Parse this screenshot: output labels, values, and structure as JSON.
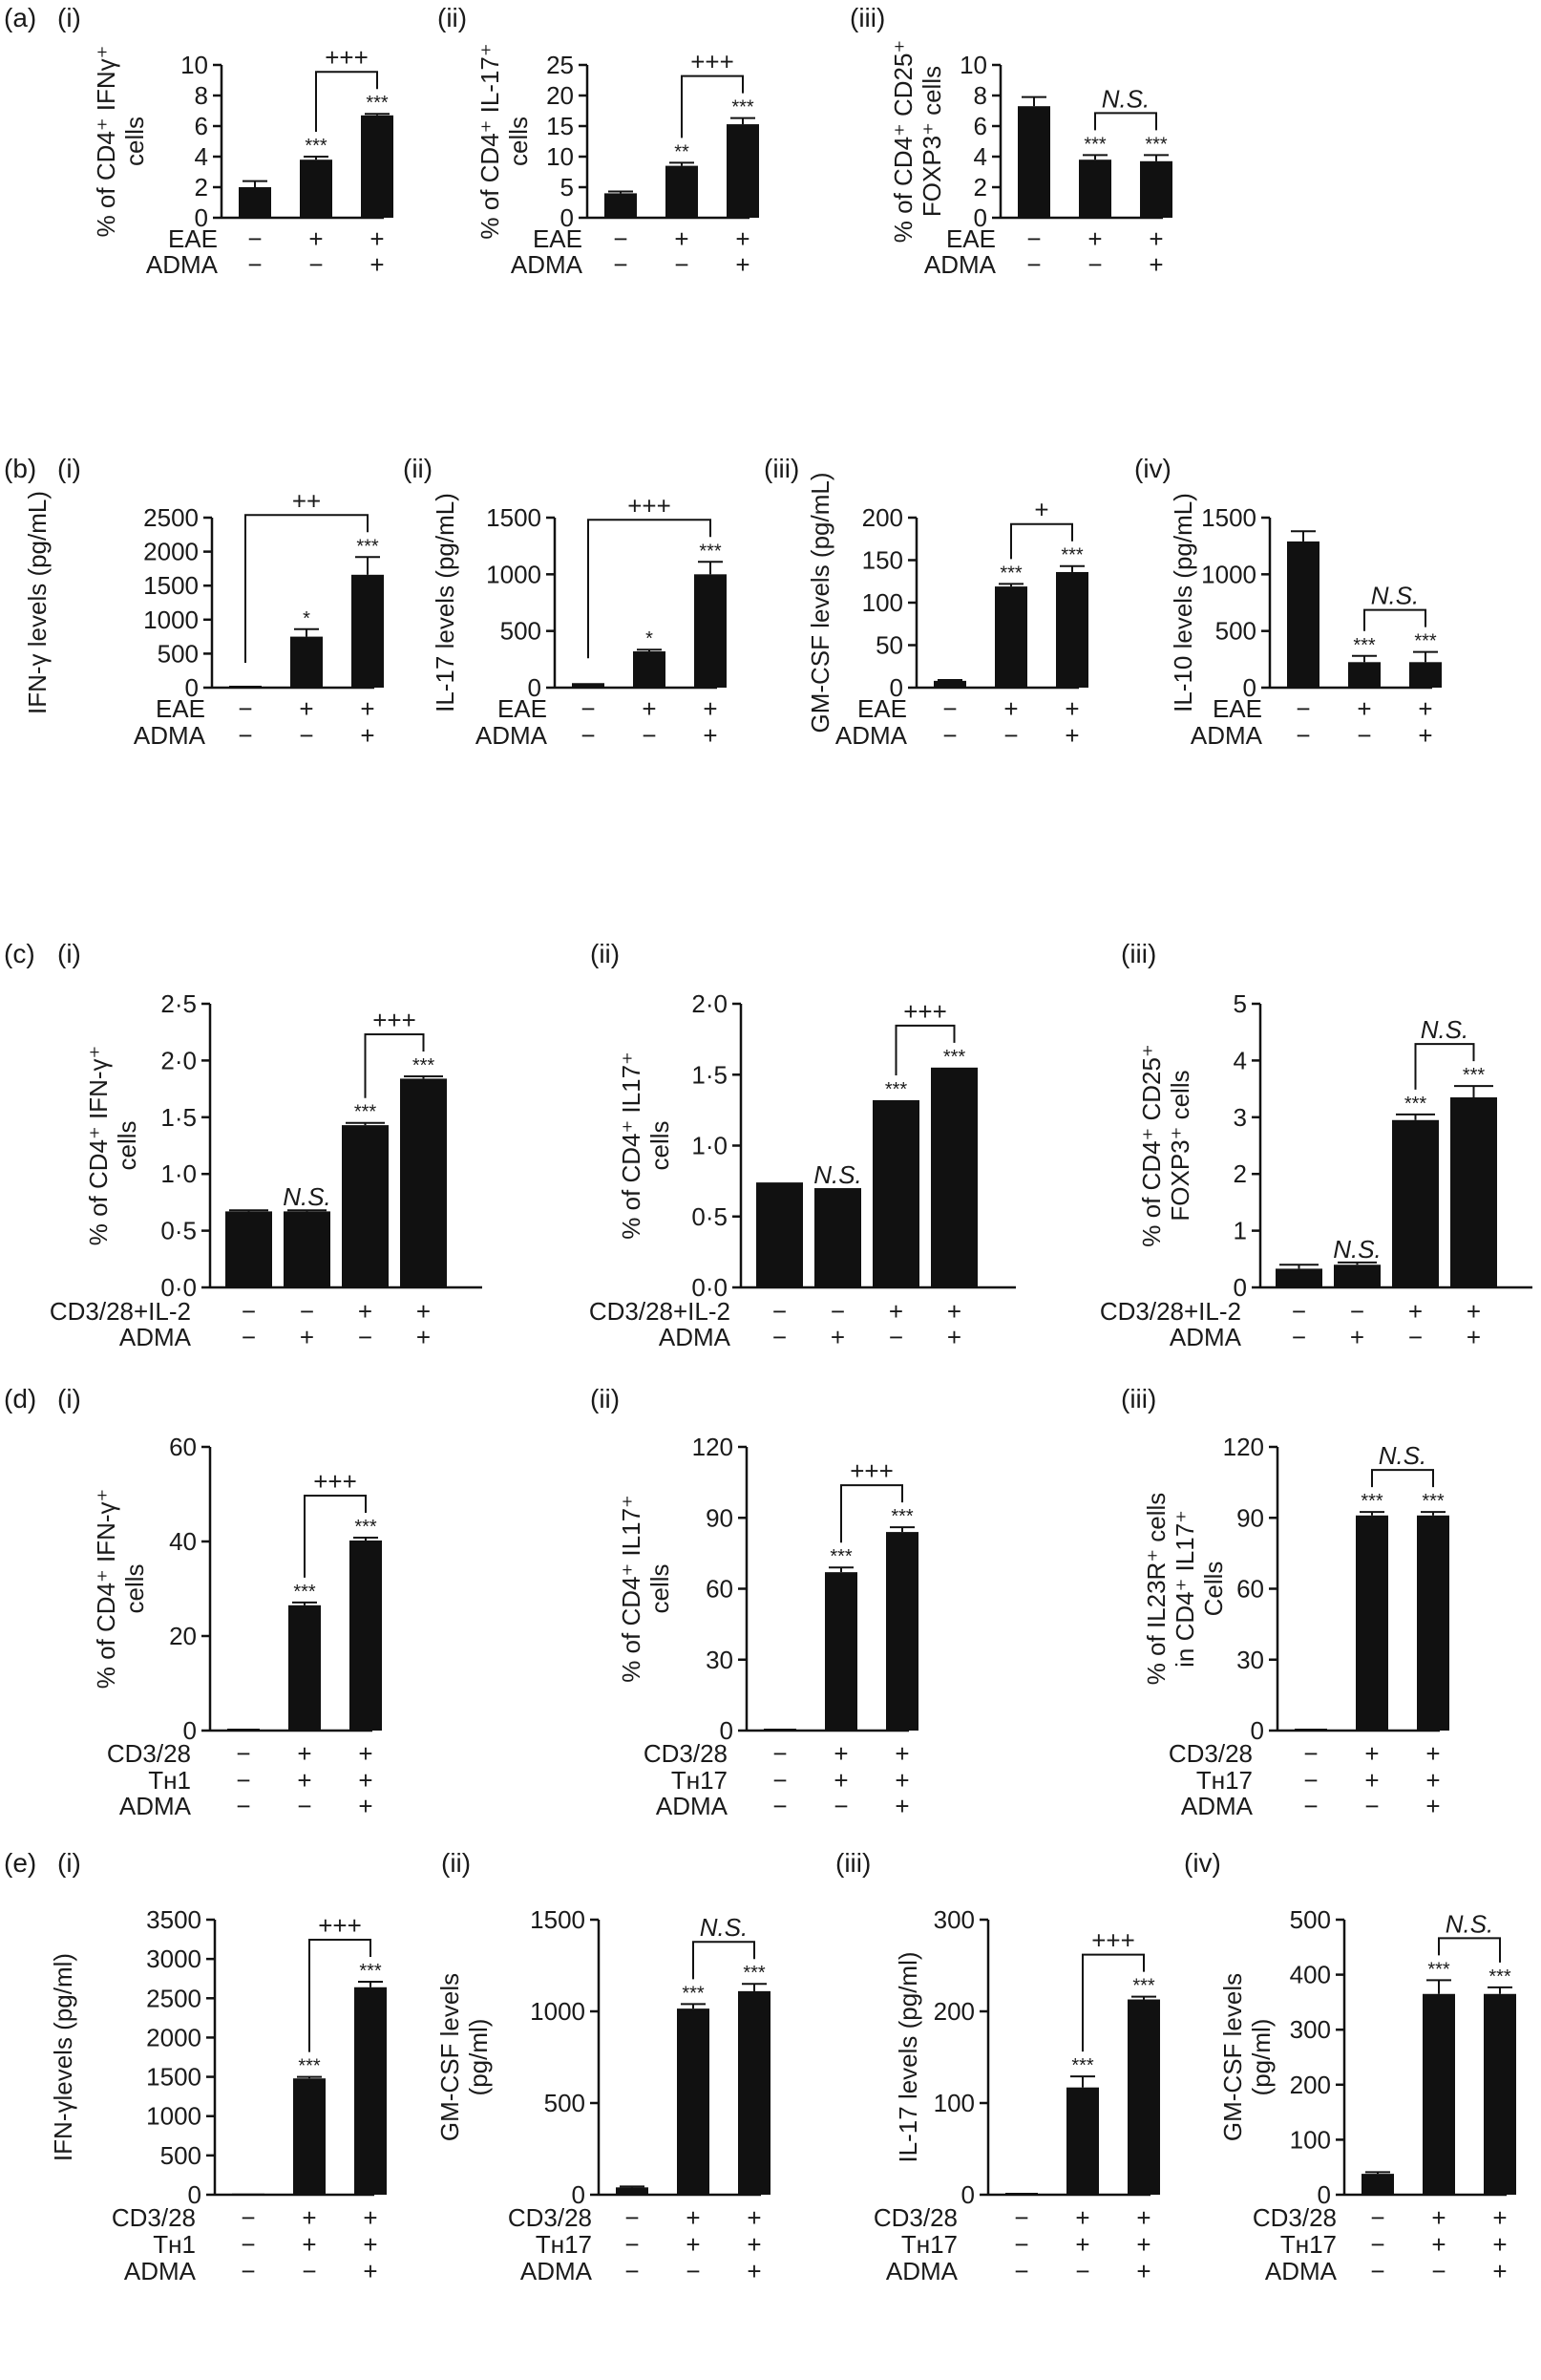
{
  "row_labels": [
    "(a)",
    "(b)",
    "(c)",
    "(d)",
    "(e)"
  ],
  "chart_data": [
    {
      "panel": "(i)",
      "type": "bar",
      "ylabel": [
        "% of CD4⁺ IFNγ⁺",
        "cells"
      ],
      "ylim": [
        0,
        10
      ],
      "yticks": [
        "0",
        "2",
        "4",
        "6",
        "8",
        "10"
      ],
      "values": [
        2.0,
        3.8,
        6.7
      ],
      "errors": [
        0.4,
        0.2,
        0.1
      ],
      "bar_labels": [
        "",
        "***",
        "***"
      ],
      "bracket": {
        "from": 1,
        "to": 2,
        "label": "+++"
      },
      "conditions": [
        {
          "name": "EAE",
          "signs": [
            "−",
            "+",
            "+"
          ]
        },
        {
          "name": "ADMA",
          "signs": [
            "−",
            "−",
            "+"
          ]
        }
      ]
    },
    {
      "panel": "(ii)",
      "type": "bar",
      "ylabel": [
        "% of CD4⁺ IL-17⁺",
        "cells"
      ],
      "ylim": [
        0,
        25
      ],
      "yticks": [
        "0",
        "5",
        "10",
        "15",
        "20",
        "25"
      ],
      "values": [
        4.0,
        8.5,
        15.3
      ],
      "errors": [
        0.3,
        0.5,
        1.0
      ],
      "bar_labels": [
        "",
        "**",
        "***"
      ],
      "bracket": {
        "from": 1,
        "to": 2,
        "label": "+++"
      },
      "conditions": [
        {
          "name": "EAE",
          "signs": [
            "−",
            "+",
            "+"
          ]
        },
        {
          "name": "ADMA",
          "signs": [
            "−",
            "−",
            "+"
          ]
        }
      ]
    },
    {
      "panel": "(iii)",
      "type": "bar",
      "ylabel": [
        "% of CD4⁺ CD25⁺",
        "FOXP3⁺ cells"
      ],
      "ylim": [
        0,
        10
      ],
      "yticks": [
        "0",
        "2",
        "4",
        "6",
        "8",
        "10"
      ],
      "values": [
        7.3,
        3.8,
        3.7
      ],
      "errors": [
        0.6,
        0.3,
        0.4
      ],
      "bar_labels": [
        "",
        "***",
        "***"
      ],
      "bracket": {
        "from": 1,
        "to": 2,
        "label": "N.S.",
        "italic": true
      },
      "conditions": [
        {
          "name": "EAE",
          "signs": [
            "−",
            "+",
            "+"
          ]
        },
        {
          "name": "ADMA",
          "signs": [
            "−",
            "−",
            "+"
          ]
        }
      ]
    },
    {
      "panel": "(i)",
      "type": "bar",
      "ylabel": [
        "IFN-γ levels (pg/mL)"
      ],
      "ylim": [
        0,
        2500
      ],
      "yticks": [
        "0",
        "500",
        "1000",
        "1500",
        "2000",
        "2500"
      ],
      "values": [
        0,
        750,
        1660
      ],
      "errors": [
        0,
        110,
        260
      ],
      "bar_labels": [
        "",
        "*",
        "***"
      ],
      "bracket": {
        "from": 0,
        "to": 2,
        "label": "++"
      },
      "conditions": [
        {
          "name": "EAE",
          "signs": [
            "−",
            "+",
            "+"
          ]
        },
        {
          "name": "ADMA",
          "signs": [
            "−",
            "−",
            "+"
          ]
        }
      ]
    },
    {
      "panel": "(ii)",
      "type": "bar",
      "ylabel": [
        "IL-17 levels (pg/mL)"
      ],
      "ylim": [
        0,
        1500
      ],
      "yticks": [
        "0",
        "500",
        "1000",
        "1500"
      ],
      "values": [
        40,
        320,
        1000
      ],
      "errors": [
        0,
        15,
        110
      ],
      "bar_labels": [
        "",
        "*",
        "***"
      ],
      "bracket": {
        "from": 0,
        "to": 2,
        "label": "+++"
      },
      "conditions": [
        {
          "name": "EAE",
          "signs": [
            "−",
            "+",
            "+"
          ]
        },
        {
          "name": "ADMA",
          "signs": [
            "−",
            "−",
            "+"
          ]
        }
      ]
    },
    {
      "panel": "(iii)",
      "type": "bar",
      "ylabel": [
        "GM-CSF levels (pg/mL)"
      ],
      "ylim": [
        0,
        200
      ],
      "yticks": [
        "0",
        "50",
        "100",
        "150",
        "200"
      ],
      "values": [
        8,
        119,
        136
      ],
      "errors": [
        1,
        3,
        7
      ],
      "bar_labels": [
        "",
        "***",
        "***"
      ],
      "bracket": {
        "from": 1,
        "to": 2,
        "label": "+"
      },
      "conditions": [
        {
          "name": "EAE",
          "signs": [
            "−",
            "+",
            "+"
          ]
        },
        {
          "name": "ADMA",
          "signs": [
            "−",
            "−",
            "+"
          ]
        }
      ]
    },
    {
      "panel": "(iv)",
      "type": "bar",
      "ylabel": [
        "IL-10 levels (pg/mL)"
      ],
      "ylim": [
        0,
        1500
      ],
      "yticks": [
        "0",
        "500",
        "1000",
        "1500"
      ],
      "values": [
        1290,
        225,
        225
      ],
      "errors": [
        90,
        55,
        90
      ],
      "bar_labels": [
        "",
        "***",
        "***"
      ],
      "bracket": {
        "from": 1,
        "to": 2,
        "label": "N.S.",
        "italic": true
      },
      "conditions": [
        {
          "name": "EAE",
          "signs": [
            "−",
            "+",
            "+"
          ]
        },
        {
          "name": "ADMA",
          "signs": [
            "−",
            "−",
            "+"
          ]
        }
      ]
    },
    {
      "panel": "(i)",
      "type": "bar",
      "ylabel": [
        "% of CD4⁺ IFN-γ⁺",
        "cells"
      ],
      "ylim": [
        0,
        2.5
      ],
      "yticks": [
        "0·0",
        "0·5",
        "1·0",
        "1·5",
        "2·0",
        "2·5"
      ],
      "values": [
        0.67,
        0.67,
        1.43,
        1.84
      ],
      "errors": [
        0.01,
        0.01,
        0.02,
        0.02
      ],
      "bar_labels": [
        "",
        "N.S.",
        "***",
        "***"
      ],
      "bracket": {
        "from": 2,
        "to": 3,
        "label": "+++"
      },
      "conditions": [
        {
          "name": "CD3/28+IL-2",
          "signs": [
            "−",
            "−",
            "+",
            "+"
          ]
        },
        {
          "name": "ADMA",
          "signs": [
            "−",
            "+",
            "−",
            "+"
          ]
        }
      ]
    },
    {
      "panel": "(ii)",
      "type": "bar",
      "ylabel": [
        "% of CD4⁺ IL17⁺",
        "cells"
      ],
      "ylim": [
        0,
        2.0
      ],
      "yticks": [
        "0·0",
        "0·5",
        "1·0",
        "1·5",
        "2·0"
      ],
      "values": [
        0.74,
        0.7,
        1.32,
        1.55
      ],
      "errors": [
        0,
        0,
        0,
        0
      ],
      "bar_labels": [
        "",
        "N.S.",
        "***",
        "***"
      ],
      "bracket": {
        "from": 2,
        "to": 3,
        "label": "+++"
      },
      "conditions": [
        {
          "name": "CD3/28+IL-2",
          "signs": [
            "−",
            "−",
            "+",
            "+"
          ]
        },
        {
          "name": "ADMA",
          "signs": [
            "−",
            "+",
            "−",
            "+"
          ]
        }
      ]
    },
    {
      "panel": "(iii)",
      "type": "bar",
      "ylabel": [
        "% of CD4⁺ CD25⁺",
        "FOXP3⁺ cells"
      ],
      "ylim": [
        0,
        5
      ],
      "yticks": [
        "0",
        "1",
        "2",
        "3",
        "4",
        "5"
      ],
      "values": [
        0.33,
        0.4,
        2.95,
        3.35
      ],
      "errors": [
        0.07,
        0.04,
        0.1,
        0.2
      ],
      "bar_labels": [
        "",
        "N.S.",
        "***",
        "***"
      ],
      "bracket": {
        "from": 2,
        "to": 3,
        "label": "N.S.",
        "italic": true
      },
      "conditions": [
        {
          "name": "CD3/28+IL-2",
          "signs": [
            "−",
            "−",
            "+",
            "+"
          ]
        },
        {
          "name": "ADMA",
          "signs": [
            "−",
            "+",
            "−",
            "+"
          ]
        }
      ]
    },
    {
      "panel": "(i)",
      "type": "bar",
      "ylabel": [
        "% of CD4⁺ IFN-γ⁺",
        "cells"
      ],
      "ylim": [
        0,
        60
      ],
      "yticks": [
        "0",
        "20",
        "40",
        "60"
      ],
      "values": [
        0,
        26.5,
        40.2
      ],
      "errors": [
        0,
        0.6,
        0.6
      ],
      "bar_labels": [
        "",
        "***",
        "***"
      ],
      "bracket": {
        "from": 1,
        "to": 2,
        "label": "+++"
      },
      "conditions": [
        {
          "name": "CD3/28",
          "signs": [
            "−",
            "+",
            "+"
          ]
        },
        {
          "name": "Tʜ1",
          "signs": [
            "−",
            "+",
            "+"
          ]
        },
        {
          "name": "ADMA",
          "signs": [
            "−",
            "−",
            "+"
          ]
        }
      ]
    },
    {
      "panel": "(ii)",
      "type": "bar",
      "ylabel": [
        "% of CD4⁺ IL17⁺",
        "cells"
      ],
      "ylim": [
        0,
        120
      ],
      "yticks": [
        "0",
        "30",
        "60",
        "90",
        "120"
      ],
      "values": [
        0,
        67,
        84
      ],
      "errors": [
        0,
        2,
        2
      ],
      "bar_labels": [
        "",
        "***",
        "***"
      ],
      "bracket": {
        "from": 1,
        "to": 2,
        "label": "+++"
      },
      "conditions": [
        {
          "name": "CD3/28",
          "signs": [
            "−",
            "+",
            "+"
          ]
        },
        {
          "name": "Tʜ17",
          "signs": [
            "−",
            "+",
            "+"
          ]
        },
        {
          "name": "ADMA",
          "signs": [
            "−",
            "−",
            "+"
          ]
        }
      ]
    },
    {
      "panel": "(iii)",
      "type": "bar",
      "ylabel": [
        "% of IL23R⁺ cells",
        "in CD4⁺ IL17⁺",
        "Cells"
      ],
      "ylim": [
        0,
        120
      ],
      "yticks": [
        "0",
        "30",
        "60",
        "90",
        "120"
      ],
      "values": [
        0,
        91,
        91
      ],
      "errors": [
        0,
        1.5,
        1.5
      ],
      "bar_labels": [
        "",
        "***",
        "***"
      ],
      "bracket": {
        "from": 1,
        "to": 2,
        "label": "N.S.",
        "italic": true
      },
      "conditions": [
        {
          "name": "CD3/28",
          "signs": [
            "−",
            "+",
            "+"
          ]
        },
        {
          "name": "Tʜ17",
          "signs": [
            "−",
            "+",
            "+"
          ]
        },
        {
          "name": "ADMA",
          "signs": [
            "−",
            "−",
            "+"
          ]
        }
      ]
    },
    {
      "panel": "(i)",
      "type": "bar",
      "ylabel": [
        "IFN-γlevels (pg/ml)"
      ],
      "ylim": [
        0,
        3500
      ],
      "yticks": [
        "0",
        "500",
        "1000",
        "1500",
        "2000",
        "2500",
        "3000",
        "3500"
      ],
      "values": [
        15,
        1480,
        2640
      ],
      "errors": [
        0,
        20,
        70
      ],
      "bar_labels": [
        "",
        "***",
        "***"
      ],
      "bracket": {
        "from": 1,
        "to": 2,
        "label": "+++"
      },
      "conditions": [
        {
          "name": "CD3/28",
          "signs": [
            "−",
            "+",
            "+"
          ]
        },
        {
          "name": "Tʜ1",
          "signs": [
            "−",
            "+",
            "+"
          ]
        },
        {
          "name": "ADMA",
          "signs": [
            "−",
            "−",
            "+"
          ]
        }
      ]
    },
    {
      "panel": "(ii)",
      "type": "bar",
      "ylabel": [
        "GM-CSF levels",
        "(pg/ml)"
      ],
      "ylim": [
        0,
        1500
      ],
      "yticks": [
        "0",
        "500",
        "1000",
        "1500"
      ],
      "values": [
        40,
        1015,
        1110
      ],
      "errors": [
        5,
        25,
        40
      ],
      "bar_labels": [
        "",
        "***",
        "***"
      ],
      "bracket": {
        "from": 1,
        "to": 2,
        "label": "N.S.",
        "italic": true
      },
      "conditions": [
        {
          "name": "CD3/28",
          "signs": [
            "−",
            "+",
            "+"
          ]
        },
        {
          "name": "Tʜ17",
          "signs": [
            "−",
            "+",
            "+"
          ]
        },
        {
          "name": "ADMA",
          "signs": [
            "−",
            "−",
            "+"
          ]
        }
      ]
    },
    {
      "panel": "(iii)",
      "type": "bar",
      "ylabel": [
        "IL-17 levels (pg/ml)"
      ],
      "ylim": [
        0,
        300
      ],
      "yticks": [
        "0",
        "100",
        "200",
        "300"
      ],
      "values": [
        0,
        117,
        213
      ],
      "errors": [
        0,
        12,
        3
      ],
      "bar_labels": [
        "",
        "***",
        "***"
      ],
      "bracket": {
        "from": 1,
        "to": 2,
        "label": "+++"
      },
      "conditions": [
        {
          "name": "CD3/28",
          "signs": [
            "−",
            "+",
            "+"
          ]
        },
        {
          "name": "Tʜ17",
          "signs": [
            "−",
            "+",
            "+"
          ]
        },
        {
          "name": "ADMA",
          "signs": [
            "−",
            "−",
            "+"
          ]
        }
      ]
    },
    {
      "panel": "(iv)",
      "type": "bar",
      "ylabel": [
        "GM-CSF levels",
        "(pg/ml)"
      ],
      "ylim": [
        0,
        500
      ],
      "yticks": [
        "0",
        "100",
        "200",
        "300",
        "400",
        "500"
      ],
      "values": [
        38,
        365,
        365
      ],
      "errors": [
        3,
        25,
        12
      ],
      "bar_labels": [
        "",
        "***",
        "***"
      ],
      "bracket": {
        "from": 1,
        "to": 2,
        "label": "N.S.",
        "italic": true
      },
      "conditions": [
        {
          "name": "CD3/28",
          "signs": [
            "−",
            "+",
            "+"
          ]
        },
        {
          "name": "Tʜ17",
          "signs": [
            "−",
            "+",
            "+"
          ]
        },
        {
          "name": "ADMA",
          "signs": [
            "−",
            "−",
            "+"
          ]
        }
      ]
    }
  ]
}
